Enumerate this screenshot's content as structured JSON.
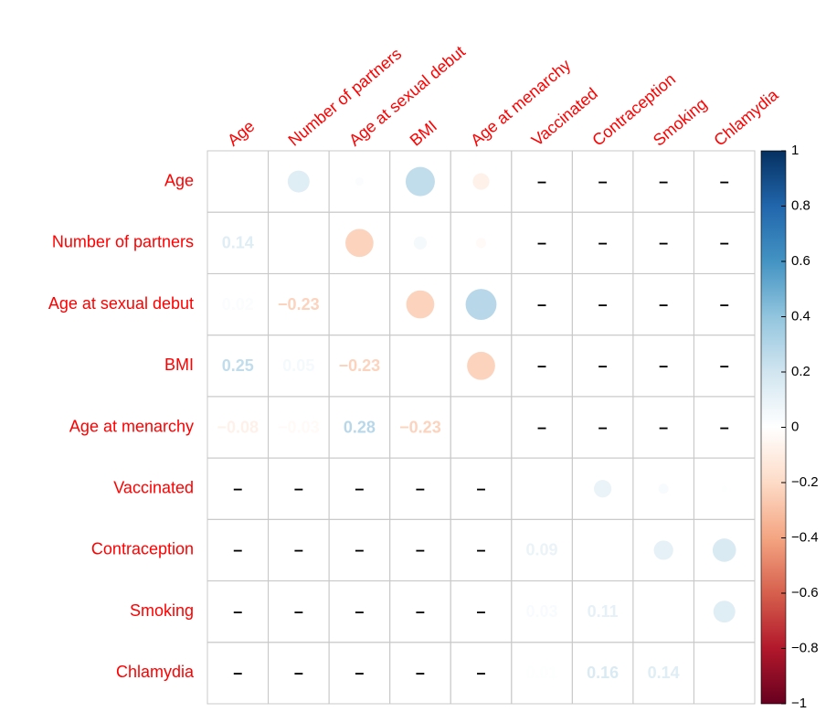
{
  "chart_data": {
    "type": "corrplot",
    "labels": [
      "Age",
      "Number of partners",
      "Age at sexual debut",
      "BMI",
      "Age at menarchy",
      "Vaccinated",
      "Contraception",
      "Smoking",
      "Chlamydia"
    ],
    "values": [
      [
        null,
        0.14,
        0.02,
        0.25,
        -0.08,
        null,
        null,
        null,
        null
      ],
      [
        0.14,
        null,
        -0.23,
        0.05,
        -0.03,
        null,
        null,
        null,
        null
      ],
      [
        0.02,
        -0.23,
        null,
        -0.23,
        0.28,
        null,
        null,
        null,
        null
      ],
      [
        0.25,
        0.05,
        -0.23,
        null,
        -0.23,
        null,
        null,
        null,
        null
      ],
      [
        -0.08,
        -0.03,
        0.28,
        -0.23,
        null,
        null,
        null,
        null,
        null
      ],
      [
        null,
        null,
        null,
        null,
        null,
        null,
        0.09,
        0.03,
        0.01
      ],
      [
        null,
        null,
        null,
        null,
        null,
        0.09,
        null,
        0.11,
        0.16
      ],
      [
        null,
        null,
        null,
        null,
        null,
        0.03,
        0.11,
        null,
        0.14
      ],
      [
        null,
        null,
        null,
        null,
        null,
        0.01,
        0.16,
        0.14,
        null
      ]
    ],
    "value_labels": [
      [
        null,
        null,
        null,
        null,
        null,
        "–",
        "–",
        "–",
        "–"
      ],
      [
        "0.14",
        null,
        null,
        null,
        null,
        "–",
        "–",
        "–",
        "–"
      ],
      [
        "0.02",
        "−0.23",
        null,
        null,
        null,
        "–",
        "–",
        "–",
        "–"
      ],
      [
        "0.25",
        "0.05",
        "−0.23",
        null,
        null,
        "–",
        "–",
        "–",
        "–"
      ],
      [
        "−0.08",
        "−0.03",
        "0.28",
        "−0.23",
        null,
        "–",
        "–",
        "–",
        "–"
      ],
      [
        "–",
        "–",
        "–",
        "–",
        "–",
        null,
        null,
        null,
        null
      ],
      [
        "–",
        "–",
        "–",
        "–",
        "–",
        "0.09",
        null,
        null,
        null
      ],
      [
        "–",
        "–",
        "–",
        "–",
        "–",
        "0.03",
        "0.11",
        null,
        null
      ],
      [
        "–",
        "–",
        "–",
        "–",
        "–",
        "0.01",
        "0.16",
        "0.14",
        null
      ]
    ],
    "colormap": [
      "#67001F",
      "#B2182B",
      "#D6604D",
      "#F4A582",
      "#FDDBC7",
      "#FFFFFF",
      "#D1E5F0",
      "#92C5DE",
      "#4393C3",
      "#2166AC",
      "#053061"
    ],
    "label_color": "#ff0000",
    "clim": [
      -1,
      1
    ],
    "cticks": [
      {
        "value": -1,
        "label": "−1"
      },
      {
        "value": -0.8,
        "label": "−0.8"
      },
      {
        "value": -0.6,
        "label": "−0.6"
      },
      {
        "value": -0.4,
        "label": "−0.4"
      },
      {
        "value": -0.2,
        "label": "−0.2"
      },
      0,
      0.2,
      0.4,
      0.6,
      0.8,
      1
    ]
  }
}
